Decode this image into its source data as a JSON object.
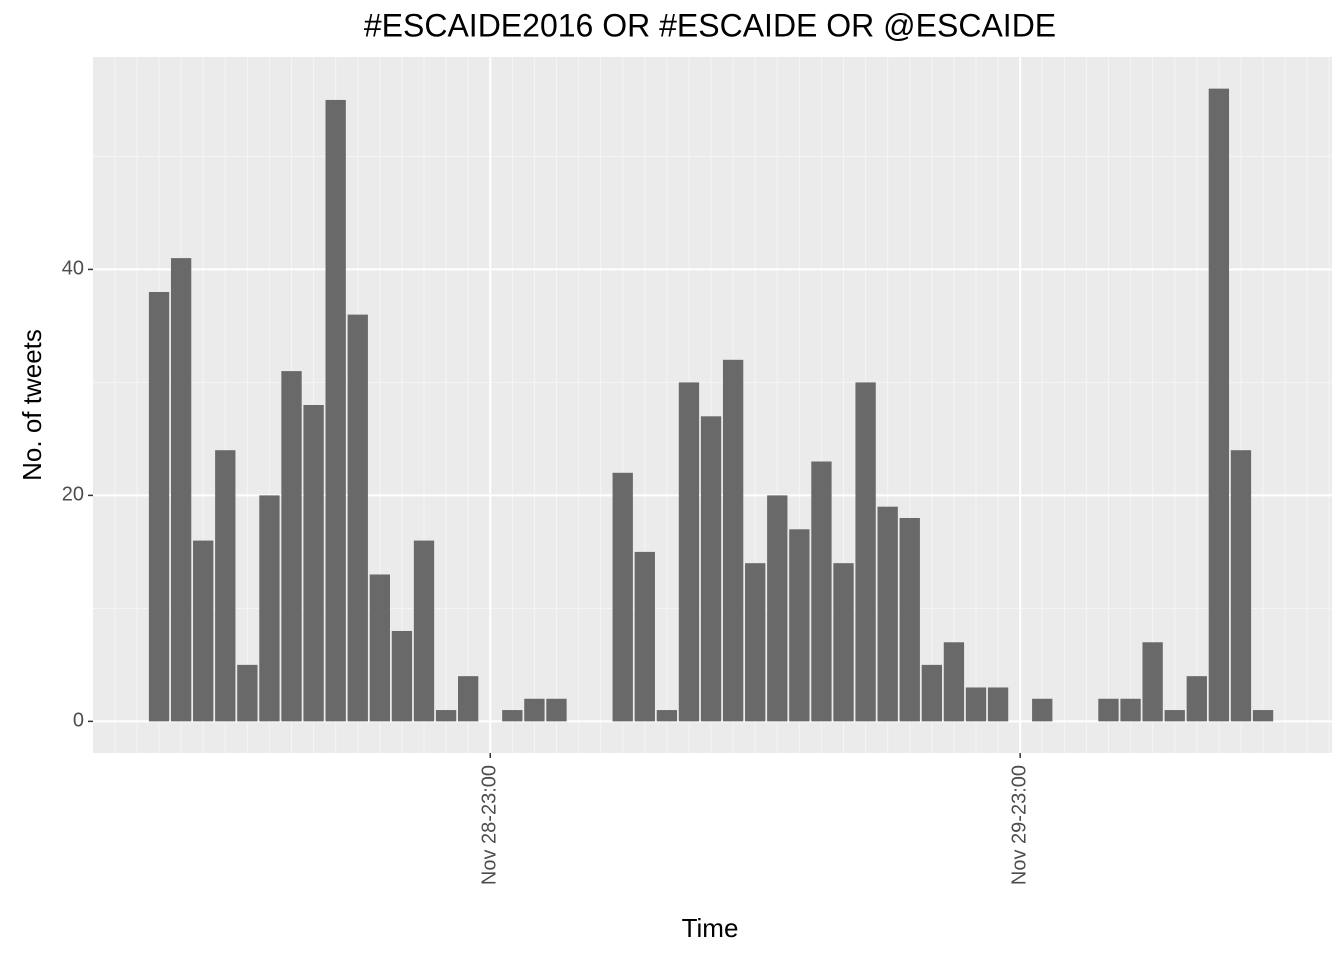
{
  "chart_data": {
    "type": "bar",
    "title": "#ESCAIDE2016 OR #ESCAIDE OR @ESCAIDE",
    "x_label": "Time",
    "y_label": "No. of tweets",
    "categories": [
      null,
      null,
      null,
      null,
      null,
      null,
      null,
      null,
      null,
      null,
      null,
      null,
      null,
      null,
      null,
      "Nov 28-23:00",
      null,
      null,
      null,
      null,
      null,
      null,
      null,
      null,
      null,
      null,
      null,
      null,
      null,
      null,
      null,
      null,
      null,
      null,
      null,
      null,
      null,
      null,
      null,
      "Nov 29-23:00",
      null,
      null,
      null,
      null,
      null,
      null,
      null,
      null,
      null,
      null,
      null
    ],
    "values": [
      38,
      41,
      16,
      24,
      5,
      20,
      31,
      28,
      55,
      36,
      13,
      8,
      16,
      1,
      4,
      0,
      1,
      2,
      2,
      0,
      0,
      22,
      15,
      1,
      30,
      27,
      32,
      14,
      20,
      17,
      23,
      14,
      30,
      19,
      18,
      5,
      7,
      3,
      3,
      0,
      2,
      0,
      0,
      2,
      2,
      7,
      1,
      4,
      56,
      24,
      1
    ],
    "color": "#696969",
    "ylim": [
      -2.8,
      58.8
    ],
    "yticks": [
      0,
      20,
      40
    ],
    "grid": true
  }
}
